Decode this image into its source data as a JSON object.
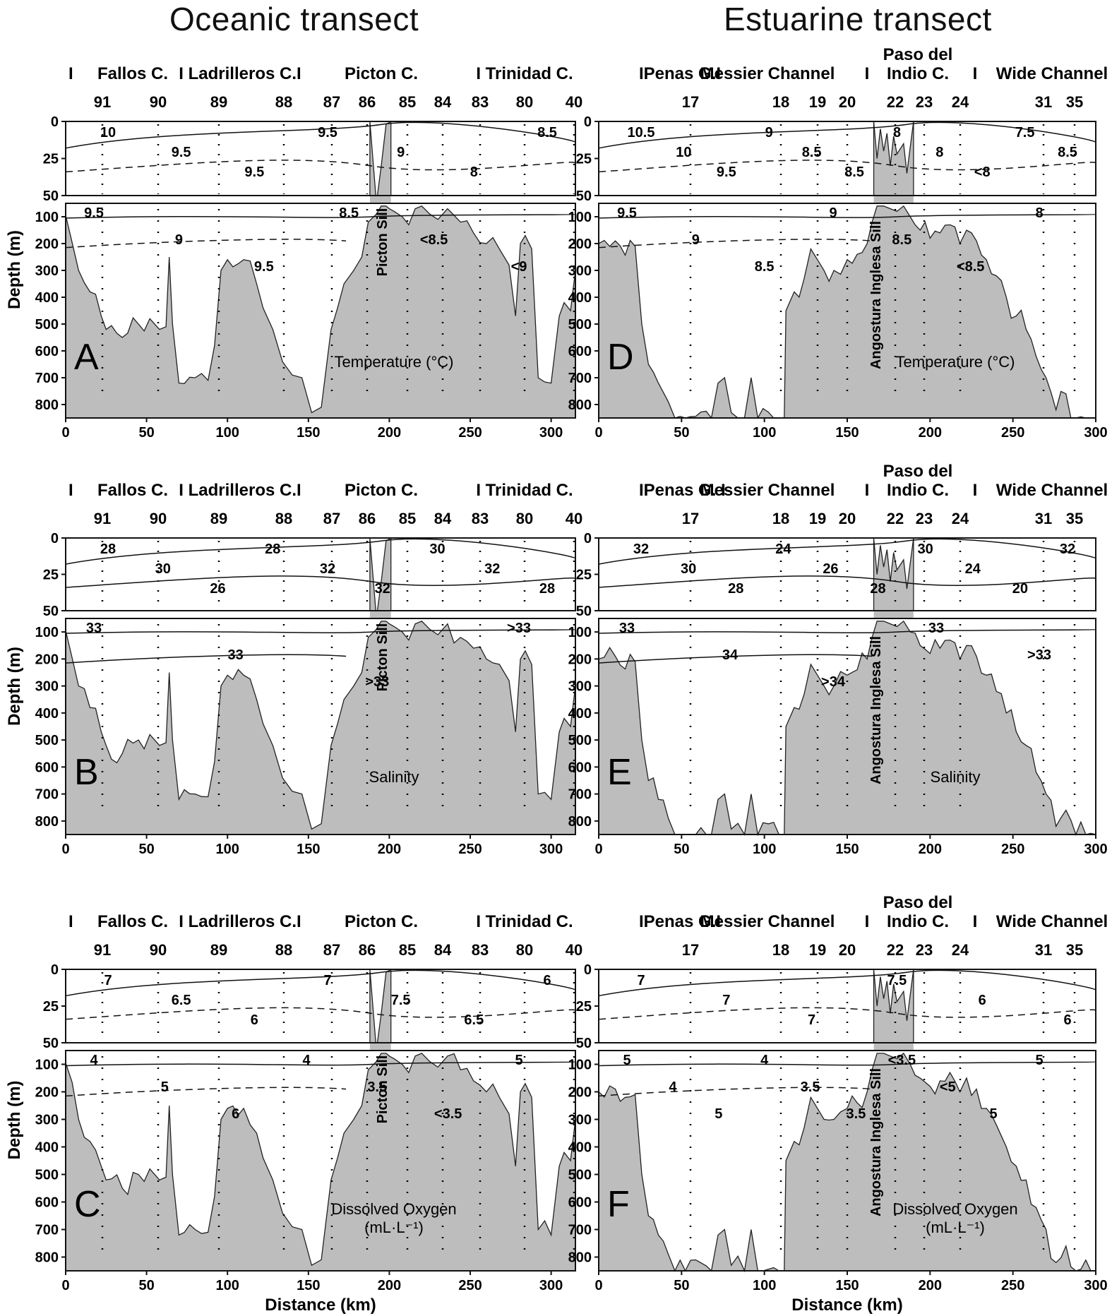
{
  "titles": {
    "left": "Oceanic transect",
    "right": "Estuarine transect"
  },
  "axes": {
    "ylabel": "Depth (m)",
    "xlabel": "Distance (km)",
    "depth_upper_ticks": [
      "0",
      "25",
      "50"
    ],
    "depth_lower_ticks": [
      "100",
      "200",
      "300",
      "400",
      "500",
      "600",
      "700",
      "800"
    ],
    "oceanic_x_ticks": [
      "0",
      "50",
      "100",
      "150",
      "200",
      "250",
      "300"
    ],
    "estuarine_x_ticks": [
      "0",
      "50",
      "100",
      "150",
      "200",
      "250",
      "300"
    ]
  },
  "oceanic": {
    "regions": [
      "I",
      "Fallos C.",
      "I Ladrilleros C.I",
      "Picton C.",
      "I Trinidad C."
    ],
    "stations": [
      "91",
      "90",
      "89",
      "88",
      "87",
      "86",
      "85",
      "84",
      "83",
      "80",
      "40"
    ],
    "sill": "Picton Sill"
  },
  "estuarine": {
    "regions": [
      "IPenas G.I",
      "Messier Channel",
      "I",
      "Paso del",
      "Indio C.",
      "I",
      "Wide Channel"
    ],
    "regions_mid": [
      "IPenas G. I",
      "Messier Channel",
      "I",
      "Paso del",
      "Indio C.",
      "I",
      "Wide Channel"
    ],
    "stations": [
      "17",
      "18",
      "19",
      "20",
      "22",
      "23",
      "24",
      "31",
      "35"
    ],
    "sill": "Angostura Inglesa Sill"
  },
  "panels": [
    {
      "letter": "A",
      "name": "Temperature (°C)",
      "name2": "",
      "upper_labels": [
        "10",
        "9.5",
        "9.5",
        "9.5",
        "9",
        "8",
        "8.5"
      ],
      "lower_labels": [
        "9.5",
        "9",
        "9.5",
        "8.5",
        "<8.5",
        "<9"
      ]
    },
    {
      "letter": "B",
      "name": "Salinity",
      "name2": "",
      "upper_labels": [
        "28",
        "30",
        "26",
        "28",
        "32",
        "32",
        "30",
        "32",
        "28"
      ],
      "lower_labels": [
        "33",
        "33",
        ">33",
        ">33"
      ]
    },
    {
      "letter": "C",
      "name": "Dissolved Oxygen",
      "name2": "(mL·L⁻¹)",
      "upper_labels": [
        "7",
        "6.5",
        "6",
        "7",
        "7.5",
        "6.5",
        "6"
      ],
      "lower_labels": [
        "4",
        "5",
        "6",
        "4",
        "3.5",
        "<3.5",
        "5"
      ]
    },
    {
      "letter": "D",
      "name": "Temperature (°C)",
      "name2": "",
      "upper_labels": [
        "10.5",
        "10",
        "9.5",
        "9",
        "8.5",
        "8.5",
        "8",
        "8",
        "<8",
        "7.5",
        "8.5"
      ],
      "lower_labels": [
        "9.5",
        "9",
        "8.5",
        "9",
        "8.5",
        "<8.5",
        "8"
      ]
    },
    {
      "letter": "E",
      "name": "Salinity",
      "name2": "",
      "upper_labels": [
        "32",
        "30",
        "28",
        "24",
        "26",
        "28",
        "30",
        "24",
        "20",
        "32"
      ],
      "lower_labels": [
        "33",
        "34",
        ">34",
        "33",
        ">33"
      ]
    },
    {
      "letter": "F",
      "name": "Dissolved Oxygen",
      "name2": "(mL·L⁻¹)",
      "upper_labels": [
        "7",
        "7",
        "7",
        "7.5",
        "6",
        "6"
      ],
      "lower_labels": [
        "5",
        "4",
        "5",
        "4",
        "3.5",
        "3.5",
        "<3.5",
        "<5",
        "5",
        "5"
      ]
    }
  ]
}
